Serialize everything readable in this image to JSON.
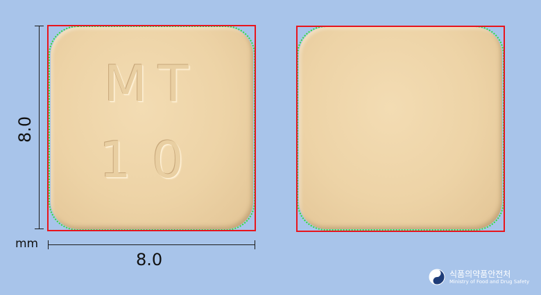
{
  "imprint": {
    "line1": "MT",
    "line2": "10"
  },
  "dimensions": {
    "width_value": "8.0",
    "height_value": "8.0",
    "unit": "mm"
  },
  "logo": {
    "korean": "식품의약품안전처",
    "english": "Ministry of Food and Drug Safety"
  },
  "colors": {
    "background": "#a8c4ea",
    "tablet": "#edd3a6",
    "bounding_box": "#e8141c",
    "contour": "#33dd33"
  }
}
